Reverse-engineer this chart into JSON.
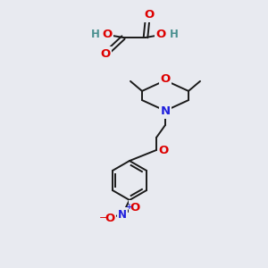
{
  "bg_color": "#e8eaf0",
  "bond_color": "#1a1a1a",
  "bond_width": 1.4,
  "atom_colors": {
    "O": "#dd0000",
    "N": "#2020dd",
    "H": "#4a9090"
  },
  "font_size": 8.5
}
